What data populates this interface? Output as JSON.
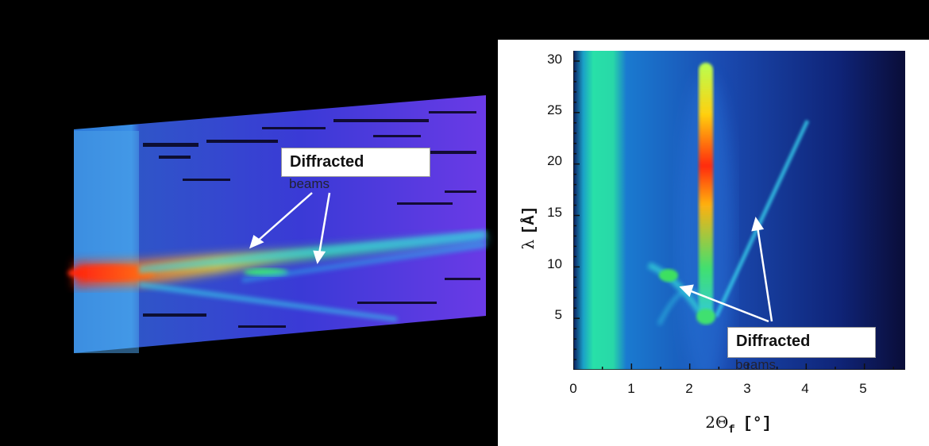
{
  "figure": {
    "left_panel": {
      "label_line1": "Diffracted",
      "label_line2": "beams"
    },
    "right_panel": {
      "label_line1": "Diffracted",
      "label_line2": "beams"
    }
  },
  "chart_data": [
    {
      "type": "heatmap",
      "title": "",
      "xlabel": "",
      "ylabel": "",
      "colormap": "rainbow (blue–cyan–green–yellow–red)",
      "background_color": "#000000",
      "annotations": [
        "Diffracted",
        "beams"
      ]
    },
    {
      "type": "heatmap",
      "title": "",
      "xlabel_symbol": "2Θ",
      "xlabel_subscript": "f",
      "xlabel_unit": "[°]",
      "ylabel_symbol": "λ",
      "ylabel_unit": "[Å]",
      "xlim": [
        0,
        5.7
      ],
      "ylim": [
        0,
        31
      ],
      "xticks": [
        "0",
        "1",
        "2",
        "3",
        "4",
        "5"
      ],
      "yticks": [
        "5",
        "10",
        "15",
        "20",
        "25",
        "30"
      ],
      "colors": {
        "background": "#0a0d38",
        "noise": "#1f4aa8",
        "direct_beam": "#1fd4a0",
        "peak_high": "#ff2a10",
        "peak_mid": "#ffd11a"
      },
      "features": [
        {
          "name": "direct beam band",
          "x_range": [
            0.2,
            0.7
          ],
          "y_range": [
            0,
            31
          ]
        },
        {
          "name": "specular peak",
          "x": 2.3,
          "y_range": [
            5,
            30
          ],
          "max_at_y": 18
        },
        {
          "name": "diffracted branch right",
          "from": [
            2.4,
            5
          ],
          "to": [
            4.0,
            24
          ]
        },
        {
          "name": "diffracted branch left",
          "from": [
            1.5,
            10
          ],
          "to": [
            2.1,
            5
          ]
        }
      ],
      "annotations": [
        "Diffracted",
        "beams"
      ]
    }
  ]
}
